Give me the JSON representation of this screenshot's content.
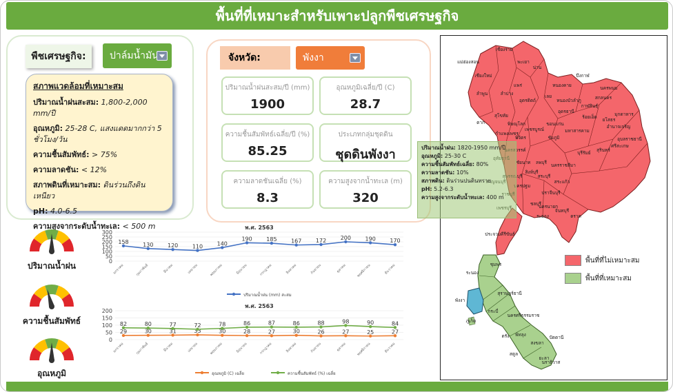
{
  "title": "พื้นที่ที่เหมาะสำหรับเพาะปลูกพืชเศรษฐกิจ",
  "crop": {
    "label": "พืชเศรษฐกิจ:",
    "selected": "ปาล์มน้ำมัน"
  },
  "suitability": {
    "heading": "สภาพแวดล้อมที่เหมาะสม",
    "rainfall_label": "ปริมาณน้ำฝนสะสม:",
    "rainfall_value": "1,800-2,000 mm/ปี",
    "temp_label": "อุณหภูมิ:",
    "temp_value": "25-28 C, แสงแดดมากกว่า 5 ชั่วโมง/วัน",
    "humidity_label": "ความชื้นสัมพัทธ์:",
    "humidity_value": "> 75%",
    "slope_label": "ความลาดชัน:",
    "slope_value": "< 12%",
    "soil_label": "สภาพดินที่เหมาะสม:",
    "soil_value": "ดินร่วนถึงดินเหนียว",
    "ph_label": "pH:",
    "ph_value": "4.0-6.5",
    "elev_label": "ความสูงจากระดับน้ำทะเล:",
    "elev_value": "< 500 m"
  },
  "province": {
    "label": "จังหวัด:",
    "selected": "พังงา"
  },
  "stats": [
    {
      "label": "ปริมาณน้ำฝนสะสม/ปี (mm)",
      "value": "1900"
    },
    {
      "label": "อุณหภูมิเฉลี่ย/ปี (C)",
      "value": "28.7"
    },
    {
      "label": "ความชื้นสัมพัทธ์เฉลี่ย/ปี (%)",
      "value": "85.25"
    },
    {
      "label": "ประเภทกลุ่มชุดดิน",
      "value": "ชุดดินพังงา"
    },
    {
      "label": "ความลาดชันเฉลี่ย (%)",
      "value": "8.3"
    },
    {
      "label": "ความสูงจากน้ำทะเล (m)",
      "value": "320"
    }
  ],
  "gauges": [
    {
      "label": "ปริมาณน้ำฝน",
      "level": 0.5
    },
    {
      "label": "ความชื้นสัมพัทธ์",
      "level": 0.42
    },
    {
      "label": "อุณหภูมิ",
      "level": 0.5
    }
  ],
  "chart_data": [
    {
      "type": "line",
      "title": "พ.ศ. 2563",
      "categories": [
        "มกราคม",
        "กุมภาพันธ์",
        "มีนาคม",
        "เมษายน",
        "พฤษภาคม",
        "มิถุนายน",
        "กรกฎาคม",
        "สิงหาคม",
        "กันยายน",
        "ตุลาคม",
        "พฤศจิกายน",
        "ธันวาคม"
      ],
      "ylim": [
        0,
        300
      ],
      "yticks": [
        "0",
        "50",
        "100",
        "150",
        "200",
        "250",
        "300"
      ],
      "series": [
        {
          "name": "ปริมาณน้ำฝน (mm) สะสม",
          "color": "#4472c4",
          "values": [
            158,
            130,
            120,
            110,
            140,
            190,
            185,
            167,
            172,
            200,
            190,
            170
          ]
        }
      ],
      "legend": "bottom"
    },
    {
      "type": "line",
      "title": "พ.ศ. 2563",
      "categories": [
        "มกราคม",
        "กุมภาพันธ์",
        "มีนาคม",
        "เมษายน",
        "พฤษภาคม",
        "มิถุนายน",
        "กรกฎาคม",
        "สิงหาคม",
        "กันยายน",
        "ตุลาคม",
        "พฤศจิกายน",
        "ธันวาคม"
      ],
      "ylim": [
        0,
        200
      ],
      "yticks": [
        "0",
        "50",
        "100",
        "150",
        "200"
      ],
      "series": [
        {
          "name": "อุณหภูมิ (C) เฉลี่ย",
          "color": "#ed7d31",
          "values": [
            29,
            30,
            31,
            33,
            30,
            28,
            27,
            30,
            26,
            27,
            25,
            27
          ]
        },
        {
          "name": "ความชื้นสัมพัทธ์ (%) เฉลี่ย",
          "color": "#70ad47",
          "values": [
            82,
            80,
            77,
            72,
            78,
            86,
            87,
            86,
            88,
            98,
            90,
            84
          ]
        }
      ],
      "legend": "bottom"
    }
  ],
  "map": {
    "tooltip": {
      "rain_label": "ปริมาณน้ำฝน:",
      "rain_value": "1820-1950 mm/ปี",
      "temp_label": "อุณหภูมิ:",
      "temp_value": "25-30 C",
      "hum_label": "ความชื้นสัมพัทธ์เฉลี่ย:",
      "hum_value": "80%",
      "slope_label": "ความลาดชัน:",
      "slope_value": "10%",
      "soil_label": "สภาพดิน:",
      "soil_value": "ดินร่วนปนดินทราย",
      "ph_label": "pH:",
      "ph_value": "5.2-6.3",
      "elev_label": "ความสูงจากระดับน้ำทะเล:",
      "elev_value": "400 m"
    },
    "legend": [
      {
        "label": "พื้นที่ที่ไม่เหมาะสม",
        "color": "#f4666b"
      },
      {
        "label": "พื้นที่ที่เหมาะสม",
        "color": "#a9d18e"
      }
    ],
    "north_provinces": [
      "เชียงราย",
      "แม่ฮ่องสอน",
      "เชียงใหม่",
      "พะเยา",
      "น่าน",
      "ลำพูน",
      "ลำปาง",
      "แพร่",
      "อุตรดิตถ์",
      "ตาก",
      "สุโขทัย",
      "พิษณุโลก",
      "เลย",
      "หนองบัวลำภู",
      "อุดรธานี",
      "หนองคาย",
      "บึงกาฬ",
      "นครพนม",
      "สกลนคร",
      "กาฬสินธุ์",
      "มุกดาหาร",
      "ขอนแก่น",
      "ร้อยเอ็ด",
      "ยโสธร",
      "อำนาจเจริญ",
      "อุบลราชธานี",
      "ศรีสะเกษ",
      "สุรินทร์",
      "บุรีรัมย์",
      "มหาสารคาม",
      "ชัยภูมิ",
      "นครราชสีมา",
      "เพชรบูรณ์",
      "พิจิตร",
      "กำแพงเพชร",
      "นครสวรรค์",
      "อุทัยธานี",
      "ชัยนาท",
      "ลพบุรี",
      "สระบุรี",
      "สิงห์บุรี",
      "สุพรรณบุรี",
      "กาญจนบุรี",
      "ราชบุรี",
      "นครปฐม",
      "สระแก้ว",
      "ปราจีนบุรี",
      "นครนายก",
      "ชลบุรี",
      "ระยอง",
      "จันทบุรี",
      "ตราด",
      "เพชรบุรี",
      "ประจวบคีรีขันธ์"
    ],
    "south_provinces": [
      "ชุมพร",
      "ระนอง",
      "สุราษฎร์ธานี",
      "พังงา",
      "นครศรีธรรมราช",
      "กระบี่",
      "ภูเก็ต",
      "พัทลุง",
      "ตรัง",
      "สงขลา",
      "สตูล",
      "ปัตตานี",
      "ยะลา",
      "นราธิวาส"
    ]
  }
}
